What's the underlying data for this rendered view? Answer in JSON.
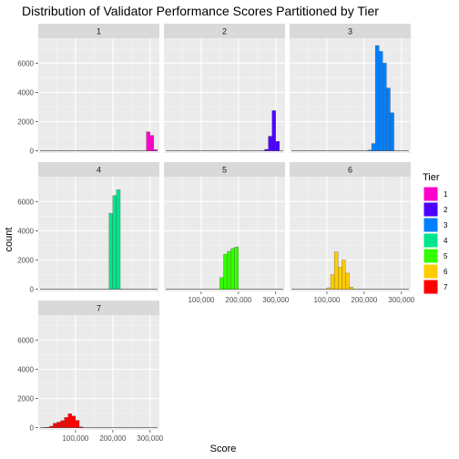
{
  "chart_data": {
    "type": "bar",
    "title": "Distribution of Validator Performance Scores Partitioned by Tier",
    "xlabel": "Score",
    "ylabel": "count",
    "xlim": [
      0,
      325000
    ],
    "ylim": [
      -150,
      7700
    ],
    "x_ticks": [
      100000,
      200000,
      300000
    ],
    "x_tick_labels": [
      "100,000",
      "200,000",
      "300,000"
    ],
    "y_ticks": [
      0,
      2000,
      4000,
      6000
    ],
    "y_tick_labels": [
      "0",
      "2000",
      "4000",
      "6000"
    ],
    "bin_width": 10000,
    "grid": true,
    "legend": {
      "title": "Tier",
      "position": "right",
      "entries": [
        "1",
        "2",
        "3",
        "4",
        "5",
        "6",
        "7"
      ]
    },
    "facets": [
      {
        "strip": "1",
        "color": "#ff00cc",
        "bins": [
          {
            "x": 295000,
            "count": 1300
          },
          {
            "x": 305000,
            "count": 1050
          },
          {
            "x": 315000,
            "count": 80
          }
        ]
      },
      {
        "strip": "2",
        "color": "#4b00ff",
        "bins": [
          {
            "x": 275000,
            "count": 100
          },
          {
            "x": 285000,
            "count": 1000
          },
          {
            "x": 295000,
            "count": 2750
          },
          {
            "x": 305000,
            "count": 650
          }
        ]
      },
      {
        "strip": "3",
        "color": "#0080ff",
        "bins": [
          {
            "x": 215000,
            "count": 50
          },
          {
            "x": 225000,
            "count": 500
          },
          {
            "x": 235000,
            "count": 7200
          },
          {
            "x": 245000,
            "count": 6800
          },
          {
            "x": 255000,
            "count": 6000
          },
          {
            "x": 265000,
            "count": 4300
          },
          {
            "x": 275000,
            "count": 2600
          }
        ]
      },
      {
        "strip": "4",
        "color": "#00e68a",
        "bins": [
          {
            "x": 195000,
            "count": 5200
          },
          {
            "x": 205000,
            "count": 6400
          },
          {
            "x": 215000,
            "count": 6800
          }
        ]
      },
      {
        "strip": "5",
        "color": "#33ff00",
        "bins": [
          {
            "x": 155000,
            "count": 800
          },
          {
            "x": 165000,
            "count": 2400
          },
          {
            "x": 175000,
            "count": 2600
          },
          {
            "x": 185000,
            "count": 2800
          },
          {
            "x": 195000,
            "count": 2900
          }
        ]
      },
      {
        "strip": "6",
        "color": "#ffcc00",
        "bins": [
          {
            "x": 105000,
            "count": 100
          },
          {
            "x": 115000,
            "count": 1000
          },
          {
            "x": 125000,
            "count": 2550
          },
          {
            "x": 135000,
            "count": 1500
          },
          {
            "x": 145000,
            "count": 2000
          },
          {
            "x": 155000,
            "count": 1100
          },
          {
            "x": 165000,
            "count": 150
          }
        ]
      },
      {
        "strip": "7",
        "color": "#ff0000",
        "bins": [
          {
            "x": 15000,
            "count": 10
          },
          {
            "x": 25000,
            "count": 30
          },
          {
            "x": 35000,
            "count": 100
          },
          {
            "x": 45000,
            "count": 300
          },
          {
            "x": 55000,
            "count": 380
          },
          {
            "x": 65000,
            "count": 480
          },
          {
            "x": 75000,
            "count": 700
          },
          {
            "x": 85000,
            "count": 950
          },
          {
            "x": 95000,
            "count": 800
          },
          {
            "x": 105000,
            "count": 500
          },
          {
            "x": 115000,
            "count": 60
          }
        ]
      }
    ]
  }
}
